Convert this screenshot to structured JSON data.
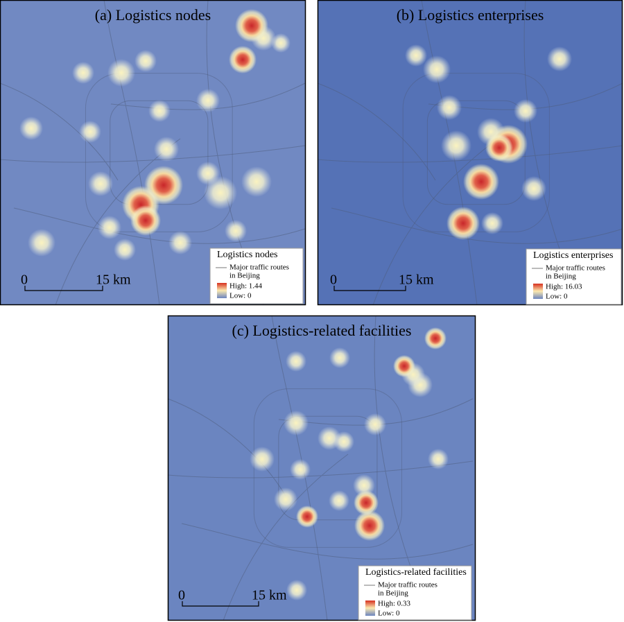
{
  "panels": [
    {
      "title": "(a) Logistics nodes",
      "legend": {
        "title": "Logistics nodes",
        "route_label": [
          "Major traffic routes",
          "in Beijing"
        ],
        "high": "High: 1.44",
        "low": "Low: 0"
      },
      "scale": {
        "start": "0",
        "end": "15 km"
      }
    },
    {
      "title": "(b) Logistics enterprises",
      "legend": {
        "title": "Logistics enterprises",
        "route_label": [
          "Major traffic routes",
          "in Beijing"
        ],
        "high": "High: 16.03",
        "low": "Low:  0"
      },
      "scale": {
        "start": "0",
        "end": "15 km"
      }
    },
    {
      "title": "(c) Logistics-related facilities",
      "legend": {
        "title": "Logistics-related facilities",
        "route_label": [
          "Major traffic routes",
          "in Beijing"
        ],
        "high": "High:  0.33",
        "low": "Low: 0"
      },
      "scale": {
        "start": "0",
        "end": "15 km"
      }
    }
  ]
}
